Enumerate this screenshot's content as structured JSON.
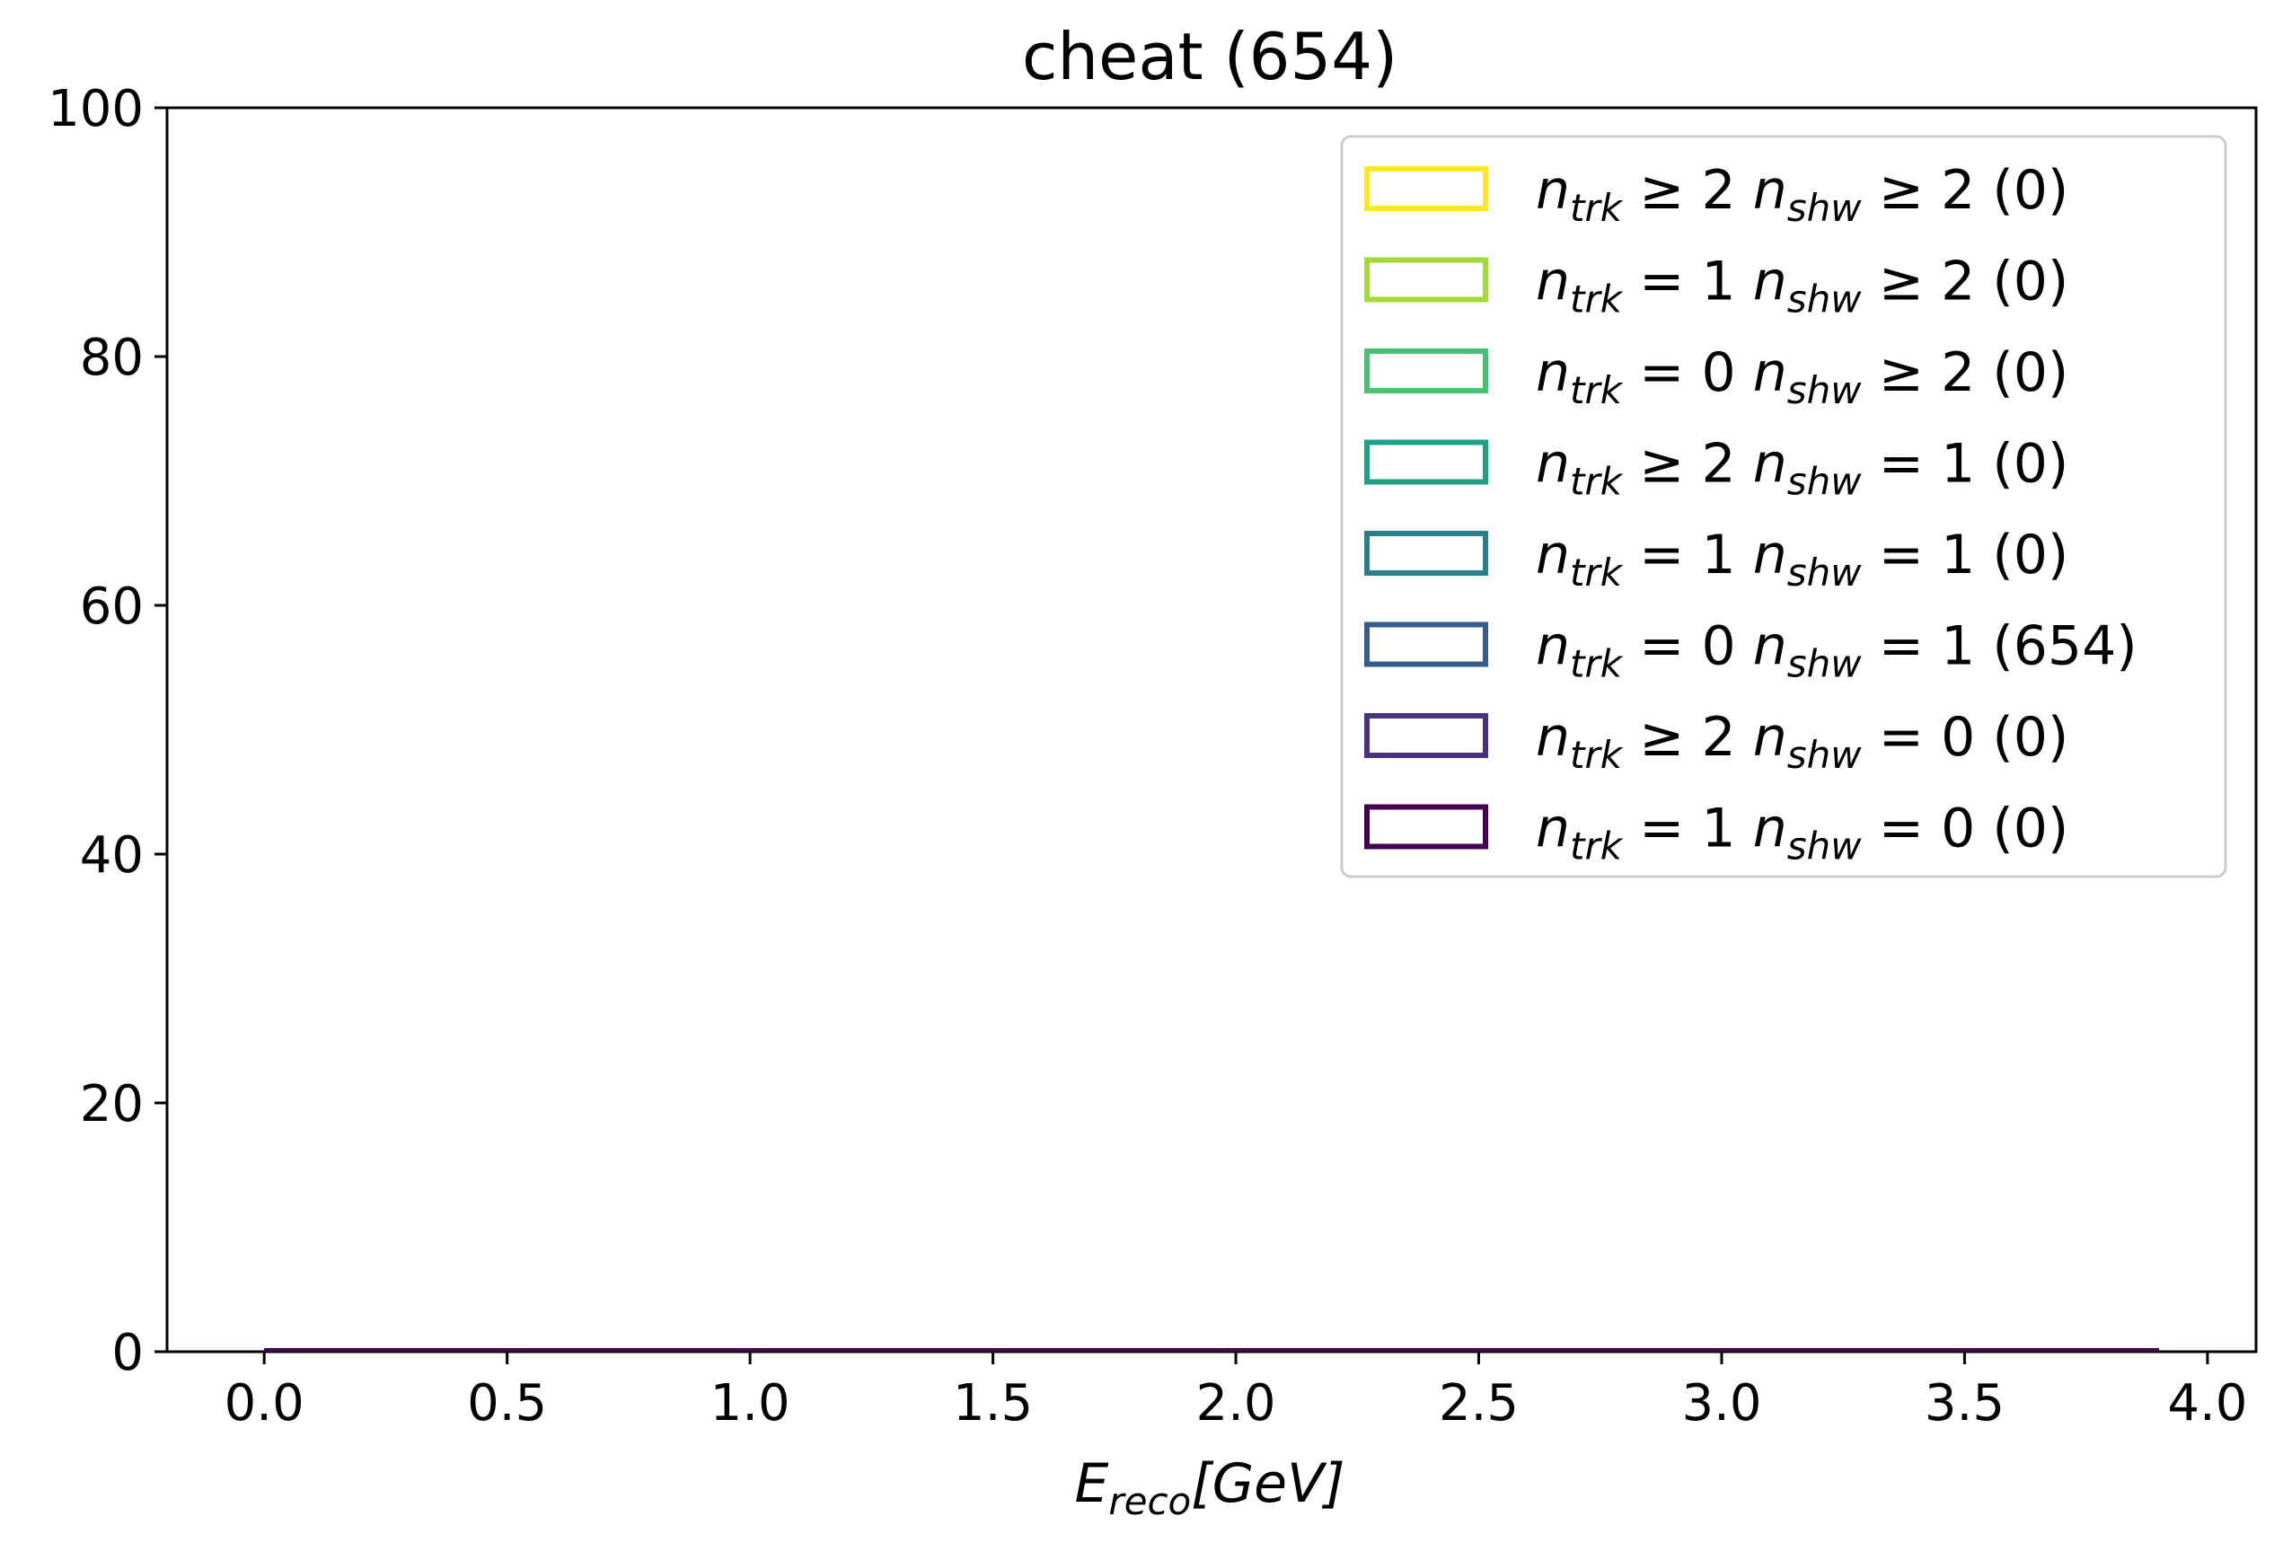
{
  "chart_data": {
    "type": "step-histogram",
    "title": "cheat (654)",
    "xlabel_main": "E",
    "xlabel_sub": "reco",
    "xlabel_rest": "[GeV]",
    "ylabel": "",
    "xlim": [
      -0.2,
      4.1
    ],
    "ylim": [
      0,
      100
    ],
    "x_ticks": [
      "0.0",
      "0.5",
      "1.0",
      "1.5",
      "2.0",
      "2.5",
      "3.0",
      "3.5",
      "4.0"
    ],
    "x_tick_values": [
      0.0,
      0.5,
      1.0,
      1.5,
      2.0,
      2.5,
      3.0,
      3.5,
      4.0
    ],
    "y_ticks": [
      "0",
      "20",
      "40",
      "60",
      "80",
      "100"
    ],
    "y_tick_values": [
      0,
      20,
      40,
      60,
      80,
      100
    ],
    "grid": false,
    "legend_position": "upper right",
    "data_x_range": [
      0.0,
      3.9
    ],
    "series": [
      {
        "n_trk_op": "≥",
        "n_trk": "2",
        "n_shw_op": "≥",
        "n_shw": "2",
        "count": "(0)",
        "color": "#fde725",
        "values": [
          0
        ]
      },
      {
        "n_trk_op": "=",
        "n_trk": "1",
        "n_shw_op": "≥",
        "n_shw": "2",
        "count": "(0)",
        "color": "#a0da39",
        "values": [
          0
        ]
      },
      {
        "n_trk_op": "=",
        "n_trk": "0",
        "n_shw_op": "≥",
        "n_shw": "2",
        "count": "(0)",
        "color": "#4ac16d",
        "values": [
          0
        ]
      },
      {
        "n_trk_op": "≥",
        "n_trk": "2",
        "n_shw_op": "=",
        "n_shw": "1",
        "count": "(0)",
        "color": "#1fa187",
        "values": [
          0
        ]
      },
      {
        "n_trk_op": "=",
        "n_trk": "1",
        "n_shw_op": "=",
        "n_shw": "1",
        "count": "(0)",
        "color": "#277f8e",
        "values": [
          0
        ]
      },
      {
        "n_trk_op": "=",
        "n_trk": "0",
        "n_shw_op": "=",
        "n_shw": "1",
        "count": "(654)",
        "color": "#365c8d",
        "values": [
          0
        ]
      },
      {
        "n_trk_op": "≥",
        "n_trk": "2",
        "n_shw_op": "=",
        "n_shw": "0",
        "count": "(0)",
        "color": "#46327e",
        "values": [
          0
        ]
      },
      {
        "n_trk_op": "=",
        "n_trk": "1",
        "n_shw_op": "=",
        "n_shw": "0",
        "count": "(0)",
        "color": "#440154",
        "values": [
          0
        ]
      }
    ],
    "legend_symbols": {
      "n": "n",
      "trk": "trk",
      "shw": "shw"
    }
  }
}
